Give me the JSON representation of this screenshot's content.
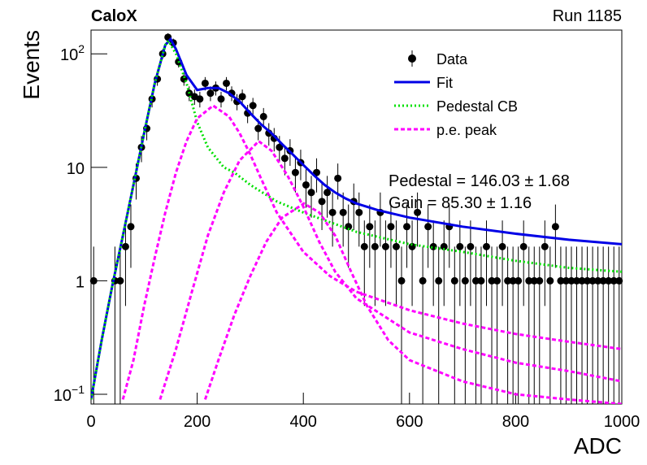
{
  "chart_data": {
    "type": "scatter",
    "experiment": "CaloX",
    "run": "Run 1185",
    "xlabel": "ADC",
    "ylabel": "Events",
    "xlim": [
      0,
      1000
    ],
    "xticks": [
      0,
      200,
      400,
      600,
      800,
      1000
    ],
    "ylim": [
      0.082,
      162
    ],
    "log_y": true,
    "yticks": [
      {
        "value": 0.1,
        "label": "10",
        "exponent": "−1"
      },
      1,
      10,
      {
        "value": 100,
        "label": "10",
        "exponent": "2"
      }
    ],
    "legend": "top-right",
    "annotations": [
      "Pedestal = 146.03 ± 1.68",
      "Gain = 85.30 ± 1.16"
    ],
    "series": [
      {
        "name": "Data",
        "type": "errorbar",
        "color": "#000000",
        "x": [
          5,
          15,
          25,
          35,
          45,
          55,
          65,
          75,
          85,
          95,
          105,
          115,
          125,
          135,
          145,
          155,
          165,
          175,
          185,
          195,
          205,
          215,
          225,
          235,
          245,
          255,
          265,
          275,
          285,
          295,
          305,
          315,
          325,
          335,
          345,
          355,
          365,
          375,
          385,
          395,
          405,
          415,
          425,
          435,
          445,
          455,
          465,
          475,
          485,
          495,
          505,
          515,
          525,
          535,
          545,
          555,
          565,
          575,
          585,
          595,
          605,
          615,
          625,
          635,
          645,
          655,
          665,
          675,
          685,
          695,
          705,
          715,
          725,
          735,
          745,
          755,
          765,
          775,
          785,
          795,
          805,
          815,
          825,
          835,
          845,
          855,
          865,
          875,
          885,
          895,
          905,
          915,
          925,
          935,
          945,
          955,
          965,
          975,
          985,
          995
        ],
        "values": [
          1,
          null,
          null,
          null,
          1,
          1,
          2,
          3,
          8,
          15,
          22,
          40,
          60,
          100,
          140,
          125,
          85,
          60,
          45,
          42,
          40,
          55,
          45,
          50,
          40,
          55,
          45,
          38,
          42,
          30,
          35,
          22,
          28,
          20,
          18,
          15,
          12,
          14,
          9,
          11,
          7,
          6,
          9,
          5,
          6,
          4,
          8,
          4,
          3,
          5,
          4,
          2,
          3,
          2,
          4,
          2,
          3,
          2,
          1,
          3,
          2,
          4,
          1,
          3,
          2,
          1,
          2,
          3,
          1,
          2,
          1,
          2,
          1,
          1,
          2,
          1,
          1,
          2,
          1,
          1,
          1,
          2,
          1,
          1,
          1,
          2,
          1,
          3,
          1,
          1,
          1,
          1,
          1,
          1,
          1,
          1,
          1,
          1,
          1,
          1
        ],
        "errors": [
          1,
          null,
          null,
          null,
          1,
          1,
          1.4,
          1.7,
          2.8,
          3.9,
          4.7,
          6.3,
          7.7,
          10,
          11.8,
          11.2,
          9.2,
          7.7,
          6.7,
          6.5,
          6.3,
          7.4,
          6.7,
          7.1,
          6.3,
          7.4,
          6.7,
          6.2,
          6.5,
          5.5,
          5.9,
          4.7,
          5.3,
          4.5,
          4.2,
          3.9,
          3.5,
          3.7,
          3,
          3.3,
          2.6,
          2.4,
          3,
          2.2,
          2.4,
          2,
          2.8,
          2,
          1.7,
          2.2,
          2,
          1.4,
          1.7,
          1.4,
          2,
          1.4,
          1.7,
          1.4,
          1,
          1.7,
          1.4,
          2,
          1,
          1.7,
          1.4,
          1,
          1.4,
          1.7,
          1,
          1.4,
          1,
          1.4,
          1,
          1,
          1.4,
          1,
          1,
          1.4,
          1,
          1,
          1,
          1.4,
          1,
          1,
          1,
          1.4,
          1,
          1.7,
          1,
          1,
          1,
          1,
          1,
          1,
          1,
          1,
          1,
          1,
          1,
          1
        ]
      },
      {
        "name": "Fit",
        "type": "line",
        "color": "#0000e6",
        "x": [
          0,
          20,
          40,
          60,
          80,
          100,
          120,
          140,
          150,
          160,
          180,
          200,
          220,
          240,
          260,
          280,
          300,
          320,
          340,
          360,
          380,
          400,
          420,
          440,
          460,
          480,
          500,
          540,
          600,
          700,
          800,
          900,
          1000
        ],
        "values": [
          0.09,
          0.3,
          0.9,
          2.5,
          7,
          20,
          55,
          120,
          135,
          110,
          65,
          48,
          50,
          50,
          45,
          38,
          30,
          24,
          20,
          16,
          13,
          10.5,
          8.5,
          7,
          6,
          5.3,
          4.8,
          4.2,
          3.6,
          3,
          2.6,
          2.3,
          2.1
        ]
      },
      {
        "name": "Pedestal CB",
        "type": "line",
        "style": "dotted",
        "color": "#00e000",
        "x": [
          0,
          20,
          40,
          60,
          80,
          100,
          120,
          140,
          146,
          160,
          180,
          200,
          220,
          250,
          270,
          300,
          350,
          400,
          500,
          600,
          700,
          800,
          900,
          1000
        ],
        "values": [
          0.09,
          0.3,
          0.9,
          2.5,
          7,
          20,
          55,
          120,
          130,
          100,
          55,
          25,
          15,
          10,
          9,
          7,
          5,
          4,
          2.7,
          2.1,
          1.8,
          1.5,
          1.3,
          1.2
        ]
      },
      {
        "name": "p.e. peak",
        "type": "line",
        "style": "dashed",
        "color": "#ff00ff",
        "curves": [
          {
            "x": [
              60,
              80,
              100,
              120,
              140,
              160,
              180,
              200,
              230,
              260,
              280,
              300,
              320,
              350,
              400,
              450,
              500,
              600,
              700,
              800,
              900,
              1000
            ],
            "values": [
              0.09,
              0.2,
              0.6,
              1.6,
              4,
              9,
              17,
              27,
              35,
              28,
              20,
              13,
              8,
              4,
              1.8,
              1.1,
              0.8,
              0.55,
              0.42,
              0.34,
              0.29,
              0.25
            ]
          },
          {
            "x": [
              130,
              160,
              190,
              220,
              250,
              280,
              316,
              340,
              370,
              400,
              430,
              460,
              500,
              600,
              700,
              800,
              900,
              1000
            ],
            "values": [
              0.09,
              0.25,
              0.8,
              2.5,
              6,
              11.5,
              17,
              14,
              8.5,
              4.5,
              2.2,
              1.2,
              0.7,
              0.35,
              0.25,
              0.19,
              0.16,
              0.13
            ]
          },
          {
            "x": [
              215,
              240,
              270,
              300,
              330,
              360,
              401,
              430,
              460,
              490,
              520,
              560,
              600,
              700,
              800,
              900,
              1000
            ],
            "values": [
              0.09,
              0.2,
              0.5,
              1.1,
              2.2,
              3.6,
              4.8,
              4,
              2.5,
              1.2,
              0.6,
              0.3,
              0.2,
              0.13,
              0.1,
              0.09,
              0.082
            ]
          }
        ]
      }
    ]
  }
}
